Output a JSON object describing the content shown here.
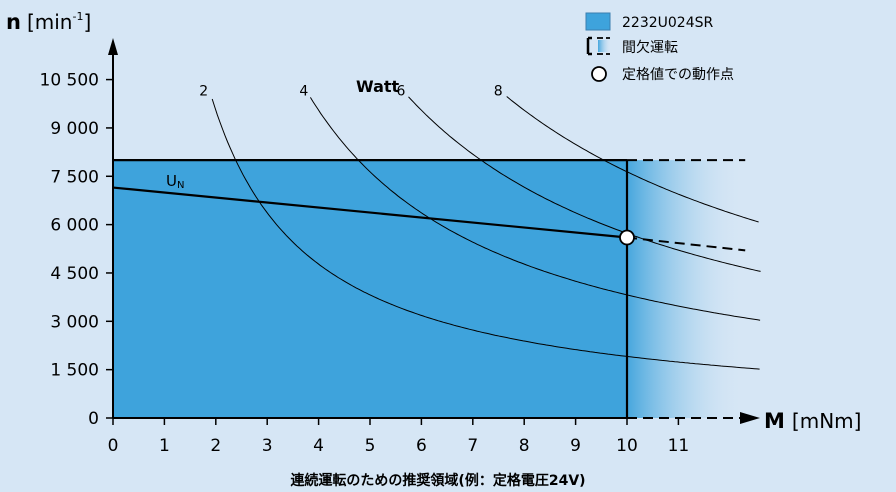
{
  "chart_data": {
    "type": "line",
    "title": "",
    "xlabel": {
      "symbol": "M",
      "unit": "[mNm]"
    },
    "ylabel": {
      "symbol": "n",
      "unit_base": "[min",
      "unit_exp": "-1",
      "unit_close": "]"
    },
    "x_ticks": [
      "0",
      "1",
      "2",
      "3",
      "4",
      "5",
      "6",
      "7",
      "8",
      "9",
      "10",
      "11"
    ],
    "y_ticks": [
      "0",
      "1 500",
      "3 000",
      "4 500",
      "6 000",
      "7 500",
      "9 000",
      "10 500"
    ],
    "xlim": [
      0,
      12.5
    ],
    "ylim": [
      0,
      11000
    ],
    "continuous_region": {
      "max_torque": 10,
      "max_speed": 8000
    },
    "intermittent_region": {
      "max_torque": 12.3,
      "max_speed": 8000
    },
    "un_line": {
      "label_base": "U",
      "label_sub": "N",
      "points": [
        [
          0,
          7150
        ],
        [
          10,
          5600
        ]
      ],
      "extension": [
        [
          10,
          5600
        ],
        [
          12.3,
          5200
        ]
      ]
    },
    "rated_point": {
      "torque": 10,
      "speed": 5600
    },
    "power_curves_title": "Watt",
    "series": [
      {
        "name": "2",
        "unit": "W"
      },
      {
        "name": "4",
        "unit": "W"
      },
      {
        "name": "6",
        "unit": "W"
      },
      {
        "name": "8",
        "unit": "W"
      }
    ],
    "legend": [
      {
        "label": "2232U024SR",
        "marker": "filled-box"
      },
      {
        "label": "間欠運転",
        "marker": "dashed-bracket"
      },
      {
        "label": "定格値での動作点",
        "marker": "circle"
      }
    ],
    "caption": "連続運転のための推奨領域(例：定格電圧24V)",
    "colors": {
      "background": "#d6e6f5",
      "continuous_fill": "#3ea3dc",
      "legend_box": "#3ea3dc",
      "line": "#000000"
    }
  }
}
